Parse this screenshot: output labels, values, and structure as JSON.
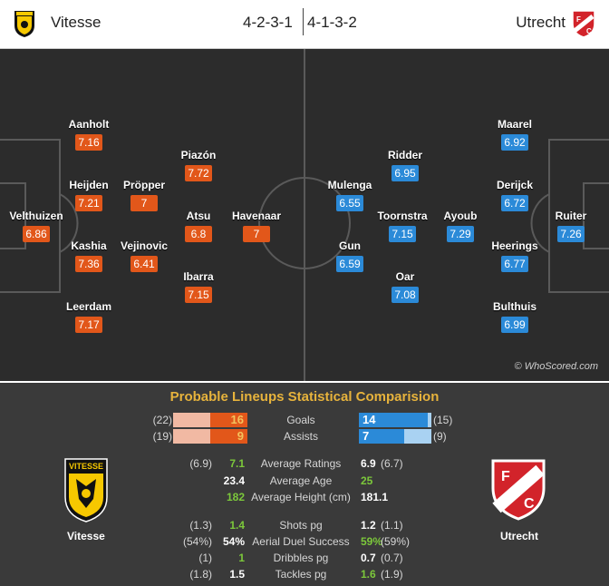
{
  "header": {
    "home_name": "Vitesse",
    "away_name": "Utrecht",
    "home_formation": "4-2-3-1",
    "away_formation": "4-1-3-2",
    "home_badge_icon": "vitesse-crest-icon",
    "away_badge_icon": "utrecht-crest-icon"
  },
  "colors": {
    "home": "#e2571a",
    "away": "#2b8ad8",
    "pitch": "#2c2c2c",
    "title": "#e7b33c",
    "better": "#7cc83b"
  },
  "home_players": [
    {
      "name": "Velthuizen",
      "rating": "6.86"
    },
    {
      "name": "Aanholt",
      "rating": "7.16"
    },
    {
      "name": "Heijden",
      "rating": "7.21"
    },
    {
      "name": "Kashia",
      "rating": "7.36"
    },
    {
      "name": "Leerdam",
      "rating": "7.17"
    },
    {
      "name": "Pröpper",
      "rating": "7"
    },
    {
      "name": "Vejinovic",
      "rating": "6.41"
    },
    {
      "name": "Piazón",
      "rating": "7.72"
    },
    {
      "name": "Atsu",
      "rating": "6.8"
    },
    {
      "name": "Ibarra",
      "rating": "7.15"
    },
    {
      "name": "Havenaar",
      "rating": "7"
    }
  ],
  "away_players": [
    {
      "name": "Ruiter",
      "rating": "7.26"
    },
    {
      "name": "Maarel",
      "rating": "6.92"
    },
    {
      "name": "Derijck",
      "rating": "6.72"
    },
    {
      "name": "Heerings",
      "rating": "6.77"
    },
    {
      "name": "Bulthuis",
      "rating": "6.99"
    },
    {
      "name": "Toornstra",
      "rating": "7.15"
    },
    {
      "name": "Ridder",
      "rating": "6.95"
    },
    {
      "name": "Ayoub",
      "rating": "7.29"
    },
    {
      "name": "Oar",
      "rating": "7.08"
    },
    {
      "name": "Mulenga",
      "rating": "6.55"
    },
    {
      "name": "Gun",
      "rating": "6.59"
    }
  ],
  "watermark": "© WhoScored.com",
  "stats": {
    "title": "Probable Lineups Statistical Comparision",
    "bars": [
      {
        "label": "Goals",
        "home_prev": "(22)",
        "home": "16",
        "away": "14",
        "away_prev": "(15)",
        "home_frac": 0.5,
        "away_frac": 0.95
      },
      {
        "label": "Assists",
        "home_prev": "(19)",
        "home": "9",
        "away": "7",
        "away_prev": "(9)",
        "home_frac": 0.5,
        "away_frac": 0.62
      }
    ],
    "rows": [
      {
        "label": "Average Ratings",
        "home_prev": "(6.9)",
        "home": "7.1",
        "away": "6.9",
        "away_prev": "(6.7)"
      },
      {
        "label": "Average Age",
        "home_prev": "",
        "home": "23.4",
        "away": "25",
        "away_prev": ""
      },
      {
        "label": "Average Height (cm)",
        "home_prev": "",
        "home": "182",
        "away": "181.1",
        "away_prev": ""
      },
      {
        "label": "Shots pg",
        "home_prev": "(1.3)",
        "home": "1.4",
        "away": "1.2",
        "away_prev": "(1.1)"
      },
      {
        "label": "Aerial Duel Success",
        "home_prev": "(54%)",
        "home": "54%",
        "away": "59%",
        "away_prev": "(59%)"
      },
      {
        "label": "Dribbles pg",
        "home_prev": "(1)",
        "home": "1",
        "away": "0.7",
        "away_prev": "(0.7)"
      },
      {
        "label": "Tackles pg",
        "home_prev": "(1.8)",
        "home": "1.5",
        "away": "1.6",
        "away_prev": "(1.9)"
      }
    ],
    "home_team": "Vitesse",
    "away_team": "Utrecht",
    "home_crest_text": "VITESSE",
    "away_crest_text": "FC UTRECHT"
  }
}
